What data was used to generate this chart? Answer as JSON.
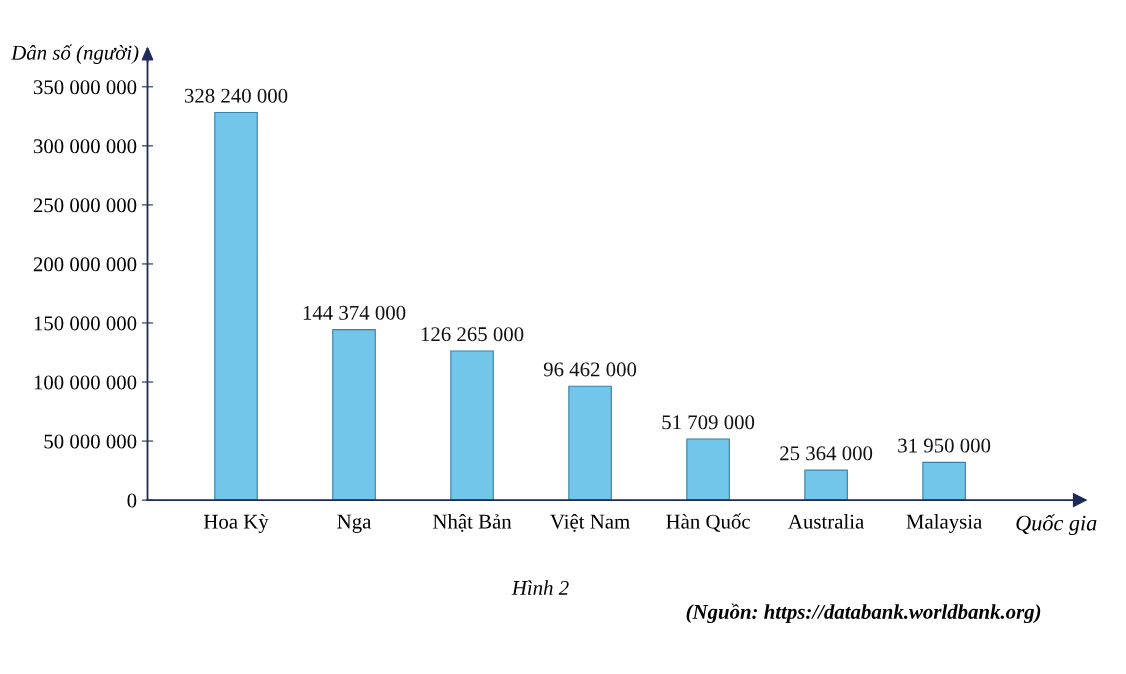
{
  "chart_data": {
    "type": "bar",
    "ylabel": "Dân số (người)",
    "xlabel": "Quốc gia",
    "categories": [
      "Hoa Kỳ",
      "Nga",
      "Nhật Bản",
      "Việt Nam",
      "Hàn Quốc",
      "Australia",
      "Malaysia"
    ],
    "values": [
      328240000,
      144374000,
      126265000,
      96462000,
      51709000,
      25364000,
      31950000
    ],
    "value_labels": [
      "328 240 000",
      "144 374 000",
      "126 265 000",
      "96 462 000",
      "51 709 000",
      "25 364 000",
      "31 950 000"
    ],
    "color": "#72c6e9",
    "ylim": [
      0,
      375000000
    ],
    "yticks": [
      {
        "value": 0,
        "label": "0"
      },
      {
        "value": 50000000,
        "label": "50 000 000"
      },
      {
        "value": 100000000,
        "label": "100 000 000"
      },
      {
        "value": 150000000,
        "label": "150 000 000"
      },
      {
        "value": 200000000,
        "label": "200 000 000"
      },
      {
        "value": 250000000,
        "label": "250 000 000"
      },
      {
        "value": 300000000,
        "label": "300 000 000"
      },
      {
        "value": 350000000,
        "label": "350 000 000"
      }
    ],
    "grid": false,
    "legend": false,
    "annotations": [
      "(Nguồn: https://databank.worldbank.org)",
      "Hình 2"
    ]
  }
}
